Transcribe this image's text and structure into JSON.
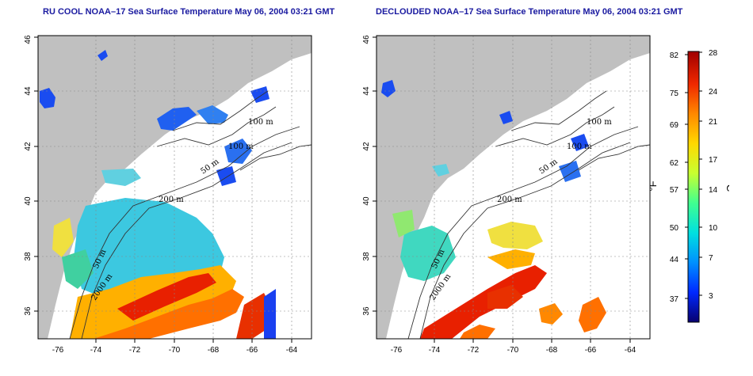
{
  "titles": {
    "left": "RU COOL NOAA–17 Sea Surface Temperature May 06, 2004 03:21 GMT",
    "right": "DECLOUDED NOAA–17 Sea Surface Temperature May 06, 2004 03:21 GMT"
  },
  "maps": {
    "lon_ticks": [
      "-76",
      "-74",
      "-72",
      "-70",
      "-68",
      "-66",
      "-64"
    ],
    "lat_ticks": [
      "36",
      "38",
      "40",
      "42",
      "44",
      "46"
    ],
    "lon_range": [
      -77,
      -63
    ],
    "lat_range": [
      35,
      46
    ],
    "isobath_labels": [
      "100 m",
      "100 m",
      "50 m",
      "200 m",
      "50 m",
      "2000 m"
    ],
    "land_color": "#c0c0c0",
    "grid": "dotted",
    "left_panel": "RU COOL",
    "right_panel": "DECLOUDED"
  },
  "colorbar": {
    "fahrenheit_ticks": [
      "82",
      "75",
      "69",
      "62",
      "57",
      "50",
      "44",
      "37"
    ],
    "celsius_ticks": [
      "28",
      "24",
      "21",
      "17",
      "14",
      "10",
      "7",
      "3"
    ],
    "fahrenheit_unit": "°F",
    "celsius_unit": "°C",
    "colors": [
      "#08006e",
      "#0028ff",
      "#0090ff",
      "#00e0e0",
      "#40ff90",
      "#c8ff30",
      "#ffd800",
      "#ff8800",
      "#f02800",
      "#a00000"
    ]
  }
}
